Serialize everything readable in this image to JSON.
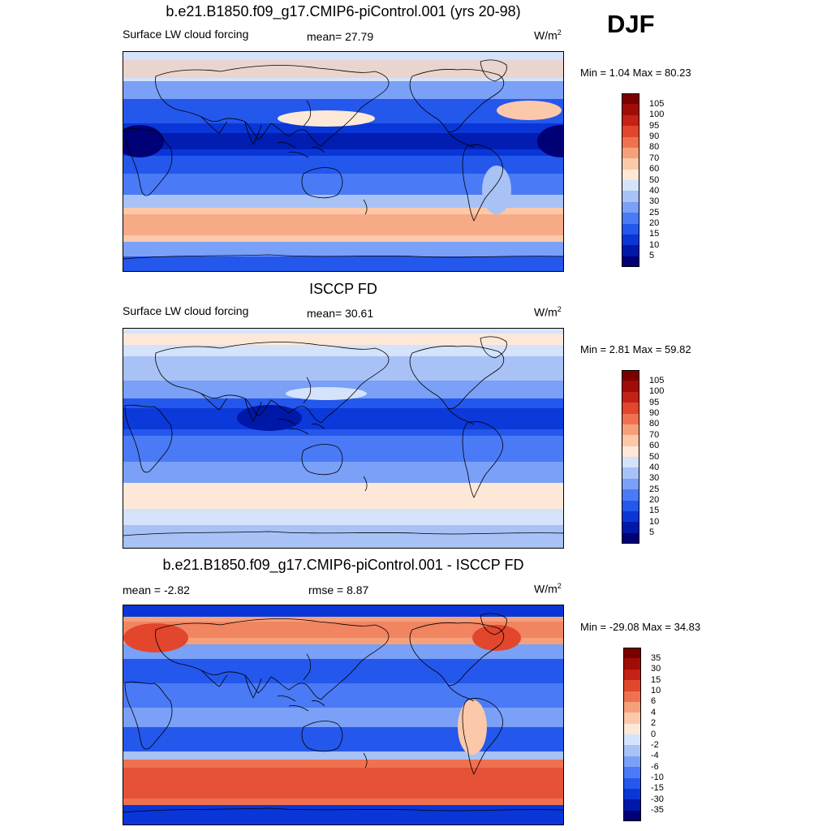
{
  "season": "DJF",
  "palettes": {
    "abs": [
      "#000077",
      "#0018a8",
      "#0a36d8",
      "#2457ec",
      "#4a7af5",
      "#7aa0f7",
      "#a8c2f6",
      "#d4e3fa",
      "#fde8d8",
      "#fbc8aa",
      "#f6a07a",
      "#ef7150",
      "#e2462c",
      "#c42214",
      "#a00c06",
      "#7a0000"
    ],
    "diff": [
      "#000077",
      "#0018a8",
      "#0a36d8",
      "#2457ec",
      "#4a7af5",
      "#7aa0f7",
      "#a8c2f6",
      "#d4e3fa",
      "#fde8d8",
      "#fbc8aa",
      "#f6a07a",
      "#ef7150",
      "#e2462c",
      "#c42214",
      "#a00c06",
      "#7a0000"
    ]
  },
  "panels": [
    {
      "title": "b.e21.B1850.f09_g17.CMIP6-piControl.001 (yrs 20-98)",
      "left_label": "Surface LW cloud forcing",
      "center_label": "mean=  27.79",
      "unit": "W/m",
      "unit_sup": "2",
      "minmax": "Min =   1.04 Max =  80.23",
      "field_type": "model",
      "colorbar": {
        "levels": [
          "105",
          "100",
          "95",
          "90",
          "80",
          "70",
          "60",
          "50",
          "40",
          "30",
          "25",
          "20",
          "15",
          "10",
          "5"
        ]
      }
    },
    {
      "title": "ISCCP FD",
      "left_label": "Surface LW cloud forcing",
      "center_label": "mean=  30.61",
      "unit": "W/m",
      "unit_sup": "2",
      "minmax": "Min =   2.81 Max =  59.82",
      "field_type": "obs",
      "colorbar": {
        "levels": [
          "105",
          "100",
          "95",
          "90",
          "80",
          "70",
          "60",
          "50",
          "40",
          "30",
          "25",
          "20",
          "15",
          "10",
          "5"
        ]
      }
    },
    {
      "title": "b.e21.B1850.f09_g17.CMIP6-piControl.001 - ISCCP FD",
      "left_label": "mean =  -2.82",
      "center_label": "rmse =   8.87",
      "unit": "W/m",
      "unit_sup": "2",
      "minmax": "Min = -29.08 Max =  34.83",
      "field_type": "diff",
      "colorbar": {
        "levels": [
          "35",
          "30",
          "15",
          "10",
          "6",
          "4",
          "2",
          "0",
          "-2",
          "-4",
          "-6",
          "-10",
          "-15",
          "-30",
          "-35"
        ]
      }
    }
  ]
}
